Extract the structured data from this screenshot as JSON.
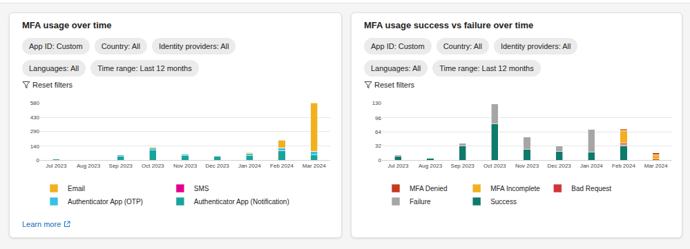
{
  "chart_data": [
    {
      "type": "bar",
      "stacked": true,
      "title": "MFA usage over time",
      "filters": [
        "App ID: Custom",
        "Country: All",
        "Identity providers: All",
        "Languages: All",
        "Time range: Last 12 months"
      ],
      "reset_label": "Reset filters",
      "footer": "Learn more",
      "categories": [
        "Jul 2023",
        "Aug 2023",
        "Sep 2023",
        "Oct 2023",
        "Nov 2023",
        "Dec 2023",
        "Jan 2024",
        "Feb 2024",
        "Mar 2024"
      ],
      "series": [
        {
          "name": "Authenticator App (Notification)",
          "color": "#1aa39a",
          "values": [
            8,
            1,
            35,
            100,
            45,
            40,
            45,
            95,
            50
          ]
        },
        {
          "name": "Authenticator App (OTP)",
          "color": "#3bbfe3",
          "values": [
            2,
            1,
            15,
            22,
            15,
            5,
            20,
            30,
            40
          ]
        },
        {
          "name": "SMS",
          "color": "#e3008c",
          "values": [
            0,
            0,
            0,
            0,
            0,
            0,
            0,
            0,
            0
          ]
        },
        {
          "name": "Email",
          "color": "#f2b01e",
          "values": [
            0,
            0,
            0,
            8,
            0,
            0,
            10,
            75,
            490
          ]
        }
      ],
      "ylim": [
        0,
        580
      ],
      "yticks": [
        0,
        140,
        290,
        430,
        580
      ],
      "grid": true,
      "legend": "bottom"
    },
    {
      "type": "bar",
      "stacked": true,
      "title": "MFA usage success vs failure over time",
      "filters": [
        "App ID: Custom",
        "Country: All",
        "Identity providers: All",
        "Languages: All",
        "Time range: Last 12 months"
      ],
      "reset_label": "Reset filters",
      "categories": [
        "Jul 2023",
        "Aug 2023",
        "Sep 2023",
        "Oct 2023",
        "Nov 2023",
        "Dec 2023",
        "Jan 2024",
        "Feb 2024",
        "Mar 2024"
      ],
      "series": [
        {
          "name": "Success",
          "color": "#0e7a6b",
          "values": [
            8,
            4,
            32,
            82,
            24,
            20,
            18,
            32,
            0
          ]
        },
        {
          "name": "Failure",
          "color": "#a6a6a6",
          "values": [
            3,
            2,
            7,
            45,
            28,
            12,
            52,
            3,
            0
          ]
        },
        {
          "name": "Bad Request",
          "color": "#d13438",
          "values": [
            0,
            0,
            0,
            0,
            0,
            0,
            0,
            4,
            2
          ]
        },
        {
          "name": "MFA Incomplete",
          "color": "#f2b01e",
          "values": [
            0,
            0,
            0,
            0,
            0,
            0,
            0,
            28,
            10
          ]
        },
        {
          "name": "MFA Denied",
          "color": "#c43b1e",
          "values": [
            0,
            0,
            0,
            0,
            0,
            0,
            0,
            3,
            4
          ]
        }
      ],
      "ylim": [
        0,
        130
      ],
      "yticks": [
        0,
        32,
        64,
        96,
        130
      ],
      "grid": true,
      "legend": "bottom"
    }
  ]
}
